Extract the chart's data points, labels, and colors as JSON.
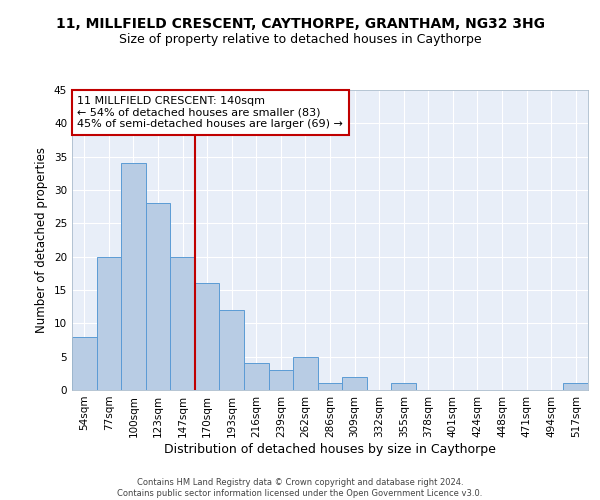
{
  "title1": "11, MILLFIELD CRESCENT, CAYTHORPE, GRANTHAM, NG32 3HG",
  "title2": "Size of property relative to detached houses in Caythorpe",
  "xlabel": "Distribution of detached houses by size in Caythorpe",
  "ylabel": "Number of detached properties",
  "footnote": "Contains HM Land Registry data © Crown copyright and database right 2024.\nContains public sector information licensed under the Open Government Licence v3.0.",
  "bar_labels": [
    "54sqm",
    "77sqm",
    "100sqm",
    "123sqm",
    "147sqm",
    "170sqm",
    "193sqm",
    "216sqm",
    "239sqm",
    "262sqm",
    "286sqm",
    "309sqm",
    "332sqm",
    "355sqm",
    "378sqm",
    "401sqm",
    "424sqm",
    "448sqm",
    "471sqm",
    "494sqm",
    "517sqm"
  ],
  "bar_values": [
    8,
    20,
    34,
    28,
    20,
    16,
    12,
    4,
    3,
    5,
    1,
    2,
    0,
    1,
    0,
    0,
    0,
    0,
    0,
    0,
    1
  ],
  "bar_color": "#b8cce4",
  "bar_edgecolor": "#5b9bd5",
  "vline_x": 4.5,
  "vline_color": "#c00000",
  "annotation_text": "11 MILLFIELD CRESCENT: 140sqm\n← 54% of detached houses are smaller (83)\n45% of semi-detached houses are larger (69) →",
  "annotation_box_color": "white",
  "annotation_box_edgecolor": "#c00000",
  "ylim": [
    0,
    45
  ],
  "yticks": [
    0,
    5,
    10,
    15,
    20,
    25,
    30,
    35,
    40,
    45
  ],
  "bg_color": "#e8eef8",
  "grid_color": "white",
  "title1_fontsize": 10,
  "title2_fontsize": 9,
  "xlabel_fontsize": 9,
  "ylabel_fontsize": 8.5,
  "tick_fontsize": 7.5,
  "annot_fontsize": 8,
  "footnote_fontsize": 6
}
